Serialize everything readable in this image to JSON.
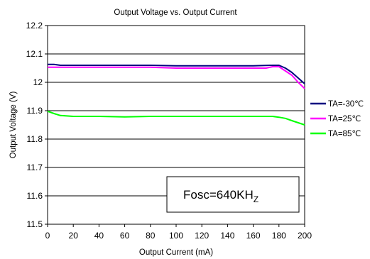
{
  "chart_data": {
    "type": "line",
    "title": "Output Voltage vs. Output Current",
    "xlabel": "Output Current (mA)",
    "ylabel": "Output Voltage (V)",
    "xlim": [
      0,
      200
    ],
    "ylim": [
      11.5,
      12.2
    ],
    "x_ticks": [
      "0",
      "20",
      "40",
      "60",
      "80",
      "100",
      "120",
      "140",
      "160",
      "180",
      "200"
    ],
    "y_ticks": [
      "11.5",
      "11.6",
      "11.7",
      "11.8",
      "11.9",
      "12",
      "12.1",
      "12.2"
    ],
    "grid": "horizontal",
    "legend_position": "right",
    "annotation": {
      "main": "Fosc=640KH",
      "sub": "Z"
    },
    "series": [
      {
        "name": "TA=-30℃",
        "color": "#000080",
        "points": [
          [
            0,
            12.063
          ],
          [
            5,
            12.063
          ],
          [
            10,
            12.06
          ],
          [
            20,
            12.06
          ],
          [
            40,
            12.06
          ],
          [
            60,
            12.06
          ],
          [
            80,
            12.06
          ],
          [
            100,
            12.058
          ],
          [
            120,
            12.058
          ],
          [
            140,
            12.058
          ],
          [
            160,
            12.058
          ],
          [
            175,
            12.06
          ],
          [
            180,
            12.06
          ],
          [
            185,
            12.05
          ],
          [
            190,
            12.035
          ],
          [
            195,
            12.015
          ],
          [
            200,
            11.995
          ]
        ]
      },
      {
        "name": "TA=25℃",
        "color": "#ff00ff",
        "points": [
          [
            0,
            12.053
          ],
          [
            20,
            12.053
          ],
          [
            40,
            12.053
          ],
          [
            60,
            12.053
          ],
          [
            80,
            12.053
          ],
          [
            100,
            12.05
          ],
          [
            120,
            12.05
          ],
          [
            140,
            12.05
          ],
          [
            160,
            12.05
          ],
          [
            170,
            12.05
          ],
          [
            175,
            12.055
          ],
          [
            180,
            12.055
          ],
          [
            185,
            12.04
          ],
          [
            190,
            12.025
          ],
          [
            195,
            12.0
          ],
          [
            200,
            11.978
          ]
        ]
      },
      {
        "name": "TA=85℃",
        "color": "#00ff00",
        "points": [
          [
            0,
            11.898
          ],
          [
            5,
            11.89
          ],
          [
            10,
            11.883
          ],
          [
            20,
            11.88
          ],
          [
            40,
            11.88
          ],
          [
            60,
            11.878
          ],
          [
            80,
            11.88
          ],
          [
            100,
            11.88
          ],
          [
            120,
            11.88
          ],
          [
            140,
            11.88
          ],
          [
            160,
            11.88
          ],
          [
            175,
            11.88
          ],
          [
            180,
            11.877
          ],
          [
            185,
            11.873
          ],
          [
            190,
            11.865
          ],
          [
            200,
            11.85
          ]
        ]
      }
    ]
  }
}
